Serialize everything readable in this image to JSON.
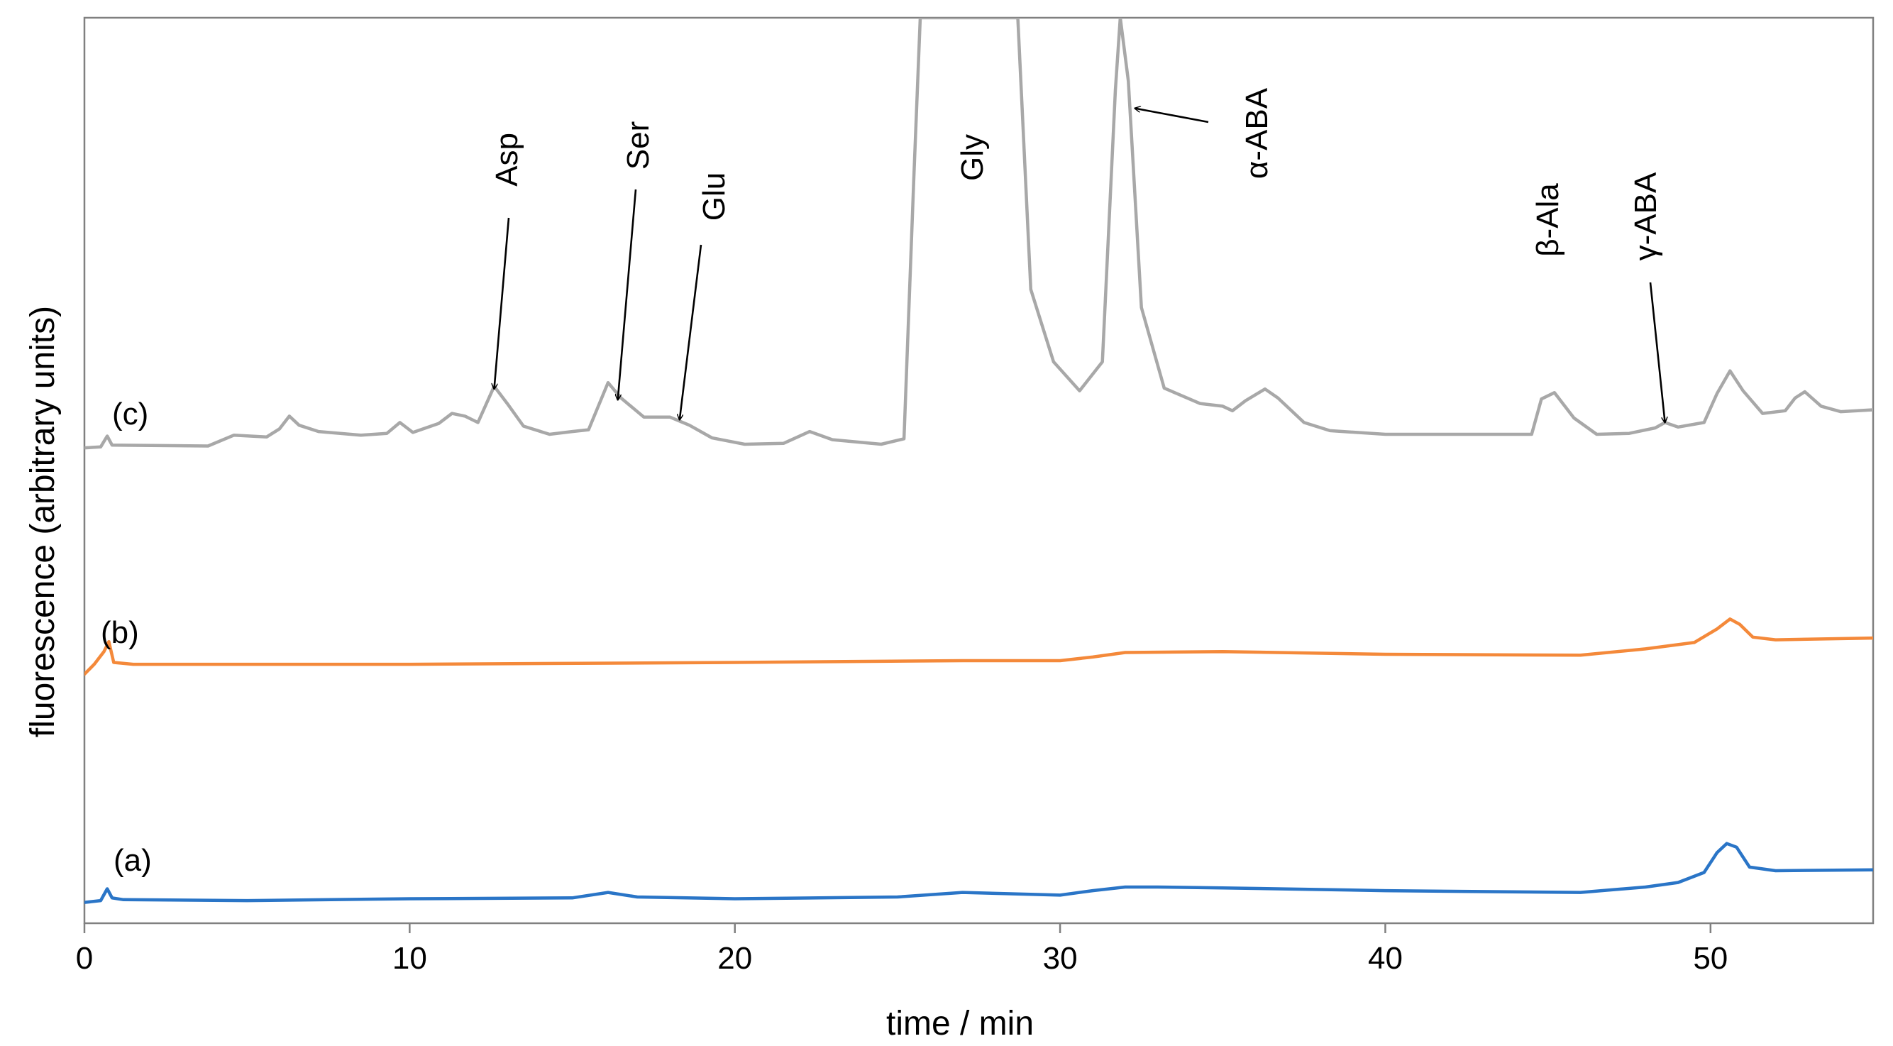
{
  "chart_data": {
    "type": "line",
    "title": "",
    "xlabel": "time / min",
    "ylabel": "fluorescence (arbitrary units)",
    "xlim": [
      0,
      55
    ],
    "ylim": [
      0,
      100
    ],
    "xticks": [
      0,
      10,
      20,
      30,
      40,
      50
    ],
    "grid": false,
    "legend": "none",
    "colors": {
      "a": "#2a75c7",
      "b": "#f4893a",
      "c": "#a8a8a8",
      "axis": "#808080",
      "text": "#000000"
    },
    "series": [
      {
        "name": "(a)",
        "label": "(a)",
        "color": "#2a75c7",
        "points": [
          [
            0,
            2.3
          ],
          [
            0.5,
            2.5
          ],
          [
            0.7,
            3.8
          ],
          [
            0.85,
            2.8
          ],
          [
            1.2,
            2.6
          ],
          [
            5,
            2.5
          ],
          [
            10,
            2.7
          ],
          [
            15,
            2.8
          ],
          [
            16.1,
            3.4
          ],
          [
            17,
            2.9
          ],
          [
            20,
            2.7
          ],
          [
            25,
            2.9
          ],
          [
            27,
            3.4
          ],
          [
            30,
            3.1
          ],
          [
            31,
            3.6
          ],
          [
            32,
            4.0
          ],
          [
            33,
            4.0
          ],
          [
            35,
            3.9
          ],
          [
            40,
            3.6
          ],
          [
            46,
            3.4
          ],
          [
            48,
            4.0
          ],
          [
            49,
            4.5
          ],
          [
            49.8,
            5.6
          ],
          [
            50.2,
            7.8
          ],
          [
            50.5,
            8.8
          ],
          [
            50.8,
            8.4
          ],
          [
            51.2,
            6.2
          ],
          [
            52,
            5.8
          ],
          [
            55,
            5.9
          ]
        ]
      },
      {
        "name": "(b)",
        "label": "(b)",
        "color": "#f4893a",
        "points": [
          [
            0,
            27.5
          ],
          [
            0.3,
            28.6
          ],
          [
            0.6,
            30.0
          ],
          [
            0.75,
            31.1
          ],
          [
            0.9,
            28.8
          ],
          [
            1.5,
            28.6
          ],
          [
            5,
            28.6
          ],
          [
            10,
            28.6
          ],
          [
            20,
            28.8
          ],
          [
            27,
            29.0
          ],
          [
            30,
            29.0
          ],
          [
            31,
            29.4
          ],
          [
            32,
            29.9
          ],
          [
            35,
            30.0
          ],
          [
            40,
            29.7
          ],
          [
            46,
            29.6
          ],
          [
            48,
            30.3
          ],
          [
            49.5,
            31.0
          ],
          [
            50.2,
            32.5
          ],
          [
            50.6,
            33.6
          ],
          [
            50.9,
            33.0
          ],
          [
            51.3,
            31.6
          ],
          [
            52,
            31.3
          ],
          [
            55,
            31.5
          ]
        ]
      },
      {
        "name": "(c)",
        "label": "(c)",
        "color": "#a8a8a8",
        "points": [
          [
            0,
            52.5
          ],
          [
            0.5,
            52.6
          ],
          [
            0.7,
            53.8
          ],
          [
            0.85,
            52.8
          ],
          [
            3.8,
            52.7
          ],
          [
            4.6,
            53.9
          ],
          [
            5.6,
            53.7
          ],
          [
            6.0,
            54.6
          ],
          [
            6.3,
            56.0
          ],
          [
            6.6,
            55.0
          ],
          [
            7.2,
            54.3
          ],
          [
            8.5,
            53.9
          ],
          [
            9.3,
            54.1
          ],
          [
            9.7,
            55.3
          ],
          [
            10.1,
            54.2
          ],
          [
            10.9,
            55.2
          ],
          [
            11.3,
            56.3
          ],
          [
            11.7,
            56.0
          ],
          [
            12.1,
            55.3
          ],
          [
            12.6,
            59.3
          ],
          [
            13.0,
            57.4
          ],
          [
            13.5,
            54.9
          ],
          [
            14.3,
            54.0
          ],
          [
            15.0,
            54.3
          ],
          [
            15.5,
            54.5
          ],
          [
            16.1,
            59.7
          ],
          [
            16.5,
            58.0
          ],
          [
            17.2,
            55.9
          ],
          [
            18.0,
            55.9
          ],
          [
            18.6,
            55.0
          ],
          [
            19.3,
            53.6
          ],
          [
            20.3,
            52.9
          ],
          [
            21.5,
            53.0
          ],
          [
            22.3,
            54.3
          ],
          [
            23,
            53.4
          ],
          [
            24.5,
            52.9
          ],
          [
            25.2,
            53.5
          ],
          [
            25.5,
            82
          ],
          [
            25.7,
            100
          ],
          [
            28.7,
            100
          ],
          [
            29.1,
            70
          ],
          [
            29.8,
            62
          ],
          [
            30.6,
            58.8
          ],
          [
            31.3,
            62
          ],
          [
            31.7,
            92
          ],
          [
            31.85,
            100
          ],
          [
            32.1,
            93
          ],
          [
            32.5,
            68
          ],
          [
            33.2,
            59.1
          ],
          [
            34.3,
            57.4
          ],
          [
            35.0,
            57.1
          ],
          [
            35.3,
            56.6
          ],
          [
            35.7,
            57.7
          ],
          [
            36.3,
            59.0
          ],
          [
            36.7,
            58.0
          ],
          [
            37.5,
            55.3
          ],
          [
            38.3,
            54.4
          ],
          [
            40,
            54.0
          ],
          [
            44.5,
            54.0
          ],
          [
            44.8,
            57.9
          ],
          [
            45.2,
            58.6
          ],
          [
            45.8,
            55.8
          ],
          [
            46.5,
            54.0
          ],
          [
            47.5,
            54.1
          ],
          [
            48.3,
            54.7
          ],
          [
            48.6,
            55.3
          ],
          [
            49.0,
            54.8
          ],
          [
            49.8,
            55.3
          ],
          [
            50.2,
            58.5
          ],
          [
            50.6,
            61.0
          ],
          [
            51.0,
            58.8
          ],
          [
            51.6,
            56.3
          ],
          [
            52.3,
            56.6
          ],
          [
            52.6,
            58.0
          ],
          [
            52.9,
            58.7
          ],
          [
            53.4,
            57.1
          ],
          [
            54,
            56.5
          ],
          [
            55,
            56.7
          ]
        ]
      }
    ],
    "annotations": [
      {
        "text": "Asp",
        "points_to": [
          12.6,
          59.0
        ]
      },
      {
        "text": "Ser",
        "points_to": [
          16.4,
          57.8
        ]
      },
      {
        "text": "Glu",
        "points_to": [
          18.3,
          55.6
        ]
      },
      {
        "text": "Gly",
        "points_to": null
      },
      {
        "text": "α-ABA",
        "points_to": [
          32.3,
          90.0
        ]
      },
      {
        "text": "β-Ala",
        "points_to": null
      },
      {
        "text": "γ-ABA",
        "points_to": [
          48.6,
          55.3
        ]
      }
    ]
  }
}
